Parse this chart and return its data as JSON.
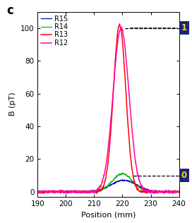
{
  "title_label": "c",
  "xlabel": "Position (mm)",
  "ylabel": "B (pT)",
  "xlim": [
    190,
    240
  ],
  "ylim": [
    -3,
    110
  ],
  "yticks": [
    0,
    20,
    40,
    60,
    80,
    100
  ],
  "xticks": [
    190,
    200,
    210,
    220,
    230,
    240
  ],
  "dashed_line_1_y": 100,
  "dashed_line_0_y": 10,
  "legend_labels": [
    "R15",
    "R14",
    "R13",
    "R12"
  ],
  "legend_colors": [
    "#0000cc",
    "#00bb00",
    "#ff0000",
    "#ff00aa"
  ],
  "label_1_text": "1",
  "label_0_text": "0",
  "label_bg_color": "#1a237e",
  "label_text_color": "#ffd700",
  "background_color": "#ffffff",
  "figsize": [
    2.72,
    3.16
  ],
  "dpi": 100
}
